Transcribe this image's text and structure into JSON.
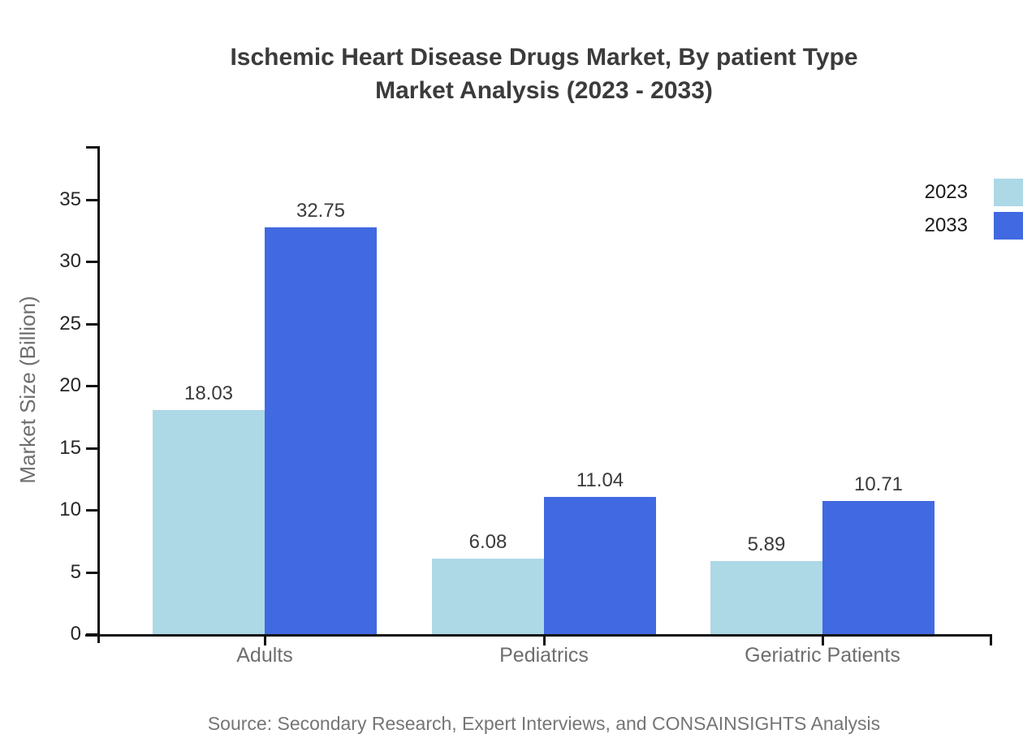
{
  "title": {
    "line1": "Ischemic Heart Disease Drugs Market, By patient Type",
    "line2": "Market Analysis (2023 - 2033)"
  },
  "chart_data": {
    "type": "bar",
    "title": "Ischemic Heart Disease Drugs Market, By patient Type Market Analysis (2023 - 2033)",
    "categories": [
      "Adults",
      "Pediatrics",
      "Geriatric Patients"
    ],
    "series": [
      {
        "name": "2023",
        "color": "#ADD8E6",
        "values": [
          18.03,
          6.08,
          5.89
        ]
      },
      {
        "name": "2033",
        "color": "#4169E1",
        "values": [
          32.75,
          11.04,
          10.71
        ]
      }
    ],
    "xlabel": "",
    "ylabel": "Market Size (Billion)",
    "ylim": [
      0,
      35
    ],
    "yticks": [
      0,
      5,
      10,
      15,
      20,
      25,
      30,
      35
    ],
    "grid": false,
    "legend_position": "top-right",
    "value_labels_decimals": 2
  },
  "source": {
    "text": "Source: Secondary Research, Expert Interviews, and CONSAINSIGHTS Analysis"
  }
}
